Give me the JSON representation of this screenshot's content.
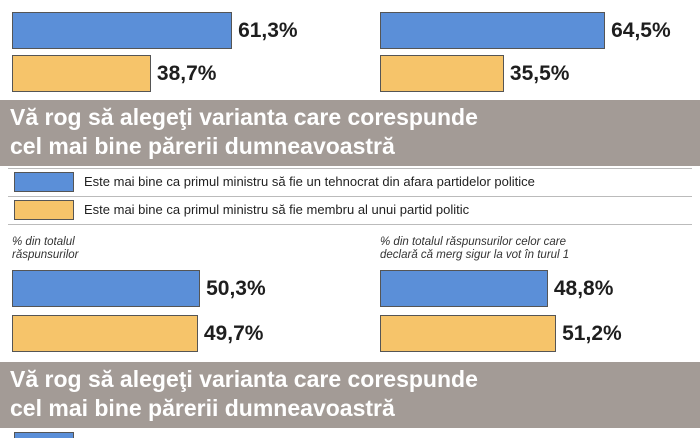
{
  "chart_data": [
    {
      "type": "bar",
      "orientation": "horizontal",
      "values": [
        61.3,
        38.7
      ],
      "value_labels": [
        "61,3%",
        "38,7%"
      ],
      "colors": [
        "#5b8fd8",
        "#f6c46a"
      ],
      "xlim": [
        0,
        100
      ]
    },
    {
      "type": "bar",
      "orientation": "horizontal",
      "values": [
        64.5,
        35.5
      ],
      "value_labels": [
        "64,5%",
        "35,5%"
      ],
      "colors": [
        "#5b8fd8",
        "#f6c46a"
      ],
      "xlim": [
        0,
        100
      ]
    },
    {
      "type": "bar",
      "orientation": "horizontal",
      "subtitle": [
        "% din totalul",
        "răspunsurilor"
      ],
      "values": [
        50.3,
        49.7
      ],
      "value_labels": [
        "50,3%",
        "49,7%"
      ],
      "colors": [
        "#5b8fd8",
        "#f6c46a"
      ],
      "xlim": [
        0,
        100
      ]
    },
    {
      "type": "bar",
      "orientation": "horizontal",
      "subtitle": [
        "% din totalul răspunsurilor celor care",
        "declară că merg sigur la vot în turul 1"
      ],
      "values": [
        48.8,
        51.2
      ],
      "value_labels": [
        "48,8%",
        "51,2%"
      ],
      "colors": [
        "#5b8fd8",
        "#f6c46a"
      ],
      "xlim": [
        0,
        100
      ]
    }
  ],
  "questions": [
    [
      "Vă rog să alegeţi varianta care corespunde",
      "cel mai bine părerii dumneavoastră"
    ],
    [
      "Vă rog să alegeţi varianta care corespunde",
      "cel mai bine părerii dumneavoastră"
    ]
  ],
  "legend": [
    {
      "label": "Este mai bine ca primul ministru să fie un tehnocrat din afara partidelor politice",
      "color": "#5b8fd8"
    },
    {
      "label": "Este mai bine ca primul ministru să fie membru al unui partid politic",
      "color": "#f6c46a"
    }
  ]
}
